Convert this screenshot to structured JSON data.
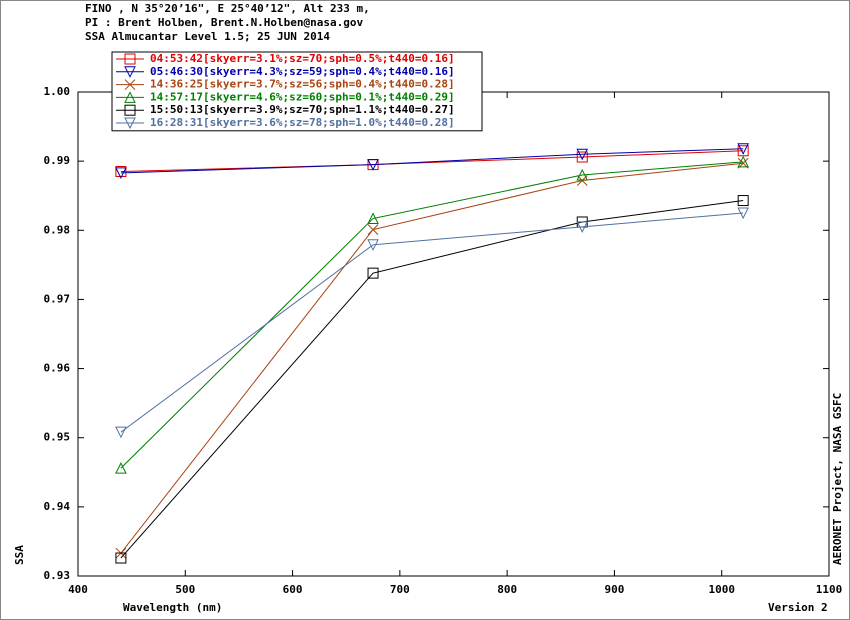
{
  "chart_data": {
    "type": "line",
    "header": [
      "FINO , N 35°20’16\", E 25°40’12\", Alt 233 m,",
      "PI : Brent Holben, Brent.N.Holben@nasa.gov",
      "SSA Almucantar Level 1.5; 25 JUN 2014"
    ],
    "xlabel": "Wavelength (nm)",
    "ylabel": "SSA",
    "side_note": "AERONET Project, NASA GSFC",
    "version_note": "Version 2",
    "x": [
      440,
      675,
      870,
      1020
    ],
    "xlim": [
      400,
      1100
    ],
    "xticks": [
      400,
      500,
      600,
      700,
      800,
      900,
      1000,
      1100
    ],
    "ylim": [
      0.93,
      1.0
    ],
    "yticks": [
      0.93,
      0.94,
      0.95,
      0.96,
      0.97,
      0.98,
      0.99,
      {
        "value": 1.0,
        "label": "1.00"
      }
    ],
    "grid": false,
    "series": [
      {
        "name": "04:53:42[skyerr=3.1%;sz=70;sph=0.5%;t440=0.16]",
        "color": "#e00000",
        "marker": "square",
        "values": [
          0.9885,
          0.9895,
          0.9906,
          0.9915
        ]
      },
      {
        "name": "05:46:30[skyerr=4.3%;sz=59;sph=0.4%;t440=0.16]",
        "color": "#0000a8",
        "marker": "triangle-down",
        "values": [
          0.9883,
          0.9895,
          0.991,
          0.9918
        ]
      },
      {
        "name": "14:36:25[skyerr=3.7%;sz=56;sph=0.4%;t440=0.28]",
        "color": "#a84410",
        "marker": "x",
        "values": [
          0.9333,
          0.9801,
          0.9872,
          0.9897
        ]
      },
      {
        "name": "14:57:17[skyerr=4.6%;sz=60;sph=0.1%;t440=0.29]",
        "color": "#008000",
        "marker": "triangle-up",
        "values": [
          0.9456,
          0.9817,
          0.988,
          0.9899
        ]
      },
      {
        "name": "15:50:13[skyerr=3.9%;sz=70;sph=1.1%;t440=0.27]",
        "color": "#000000",
        "marker": "square",
        "values": [
          0.9326,
          0.9738,
          0.9812,
          0.9843
        ]
      },
      {
        "name": "16:28:31[skyerr=3.6%;sz=78;sph=1.0%;t440=0.28]",
        "color": "#5070a0",
        "marker": "triangle-down",
        "values": [
          0.9508,
          0.9779,
          0.9805,
          0.9825
        ]
      }
    ]
  }
}
